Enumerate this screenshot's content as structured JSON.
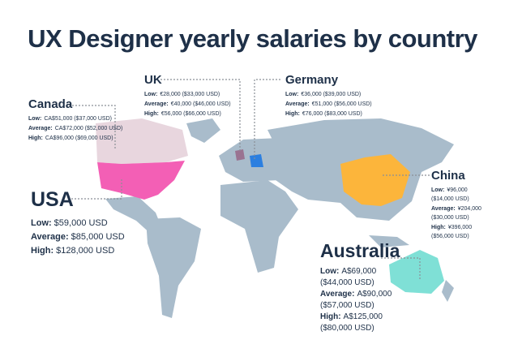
{
  "title": "UX Designer yearly salaries by country",
  "countries": [
    {
      "name": "Canada",
      "rows": [
        {
          "label": "Low:",
          "value": "CA$51,000 ($37,000 USD)"
        },
        {
          "label": "Average:",
          "value": "CA$72,000 ($52,000 USD)"
        },
        {
          "label": "High:",
          "value": "CA$96,000 ($69,000 USD)"
        }
      ]
    },
    {
      "name": "UK",
      "rows": [
        {
          "label": "Low:",
          "value": "€28,000 ($33,000 USD)"
        },
        {
          "label": "Average:",
          "value": "€40,000 ($46,000 USD)"
        },
        {
          "label": "High:",
          "value": "€56,000 ($66,000 USD)"
        }
      ]
    },
    {
      "name": "Germany",
      "rows": [
        {
          "label": "Low:",
          "value": "€36,000 ($39,000 USD)"
        },
        {
          "label": "Average:",
          "value": "€51,000 ($56,000 USD)"
        },
        {
          "label": "High:",
          "value": "€76,000 ($83,000 USD)"
        }
      ]
    },
    {
      "name": "USA",
      "rows": [
        {
          "label": "Low:",
          "value": "$59,000 USD"
        },
        {
          "label": "Average:",
          "value": "$85,000 USD"
        },
        {
          "label": "High:",
          "value": "$128,000 USD"
        }
      ]
    },
    {
      "name": "China",
      "rows": [
        {
          "label": "Low:",
          "value": "¥96,000 ($14,000 USD)"
        },
        {
          "label": "Average:",
          "value": "¥204,000 ($30,000 USD)"
        },
        {
          "label": "High:",
          "value": "¥396,000 ($56,000 USD)"
        }
      ]
    },
    {
      "name": "Australia",
      "rows": [
        {
          "label": "Low:",
          "value": "A$69,000 ($44,000 USD)"
        },
        {
          "label": "Average:",
          "value": "A$90,000 ($57,000 USD)"
        },
        {
          "label": "High:",
          "value": "A$125,000 ($80,000 USD)"
        }
      ]
    }
  ]
}
